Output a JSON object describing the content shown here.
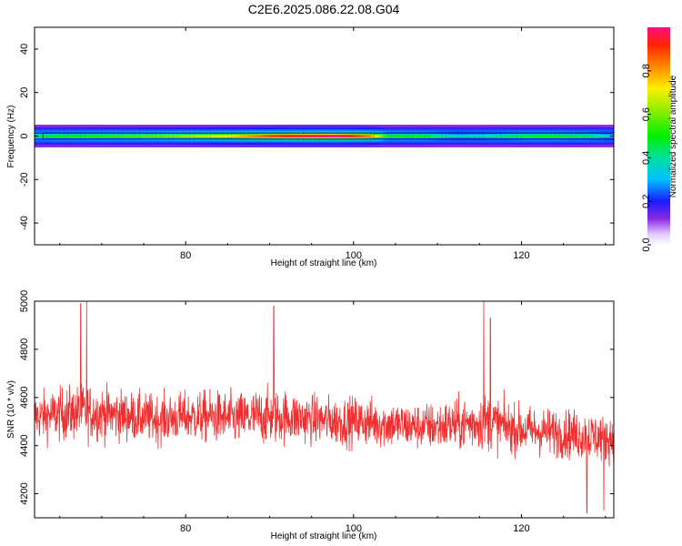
{
  "title": "C2E6.2025.086.22.08.G04",
  "chart_data": [
    {
      "type": "heatmap",
      "xlabel": "Height of straight line (km)",
      "ylabel": "Frequency (Hz)",
      "xlim": [
        62,
        131
      ],
      "ylim": [
        -50,
        50
      ],
      "x_ticks": [
        80,
        100,
        120
      ],
      "y_ticks": [
        40,
        20,
        0,
        -20,
        -40
      ],
      "colorbar": {
        "label": "Normalized spectral amplitude",
        "range": [
          0,
          1
        ],
        "ticks": [
          0.0,
          0.2,
          0.4,
          0.6,
          0.8
        ]
      },
      "band_profile": [
        {
          "x": 62,
          "amp": 0.45
        },
        {
          "x": 66,
          "amp": 0.5
        },
        {
          "x": 70,
          "amp": 0.52
        },
        {
          "x": 74,
          "amp": 0.55
        },
        {
          "x": 78,
          "amp": 0.58
        },
        {
          "x": 82,
          "amp": 0.66
        },
        {
          "x": 86,
          "amp": 0.75
        },
        {
          "x": 90,
          "amp": 0.88
        },
        {
          "x": 94,
          "amp": 0.96
        },
        {
          "x": 98,
          "amp": 1.0
        },
        {
          "x": 102,
          "amp": 0.82
        },
        {
          "x": 104,
          "amp": 0.5
        },
        {
          "x": 108,
          "amp": 0.5
        },
        {
          "x": 112,
          "amp": 0.38
        },
        {
          "x": 116,
          "amp": 0.4
        },
        {
          "x": 120,
          "amp": 0.48
        },
        {
          "x": 124,
          "amp": 0.5
        },
        {
          "x": 128,
          "amp": 0.45
        },
        {
          "x": 131,
          "amp": 0.35
        }
      ]
    },
    {
      "type": "line",
      "xlabel": "Height of straight line (km)",
      "ylabel": "SNR (10 * v/v)",
      "xlim": [
        62,
        131
      ],
      "ylim": [
        4100,
        5000
      ],
      "x_ticks": [
        80,
        100,
        120
      ],
      "y_ticks": [
        4200,
        4400,
        4600,
        4800,
        5000
      ],
      "color": "#f03030",
      "series": [
        {
          "x": [
            62,
            65,
            68,
            71,
            74,
            77,
            80,
            83,
            86,
            89,
            92,
            95,
            98,
            101,
            104,
            107,
            110,
            113,
            116,
            119,
            122,
            125,
            128,
            131
          ],
          "mean": [
            4520,
            4530,
            4540,
            4530,
            4520,
            4510,
            4520,
            4520,
            4510,
            4520,
            4520,
            4510,
            4500,
            4500,
            4490,
            4480,
            4480,
            4490,
            4500,
            4470,
            4460,
            4450,
            4440,
            4430
          ],
          "spread": [
            130,
            140,
            150,
            140,
            130,
            130,
            130,
            140,
            140,
            150,
            140,
            130,
            130,
            130,
            130,
            120,
            130,
            140,
            150,
            130,
            130,
            130,
            130,
            130
          ],
          "peaks": [
            {
              "x": 67.5,
              "y": 4990
            },
            {
              "x": 68.2,
              "y": 5000
            },
            {
              "x": 90.5,
              "y": 4980
            },
            {
              "x": 115.5,
              "y": 5000
            },
            {
              "x": 116.3,
              "y": 4930
            },
            {
              "x": 127.8,
              "y": 4120
            },
            {
              "x": 129.8,
              "y": 4130
            }
          ]
        }
      ]
    }
  ]
}
